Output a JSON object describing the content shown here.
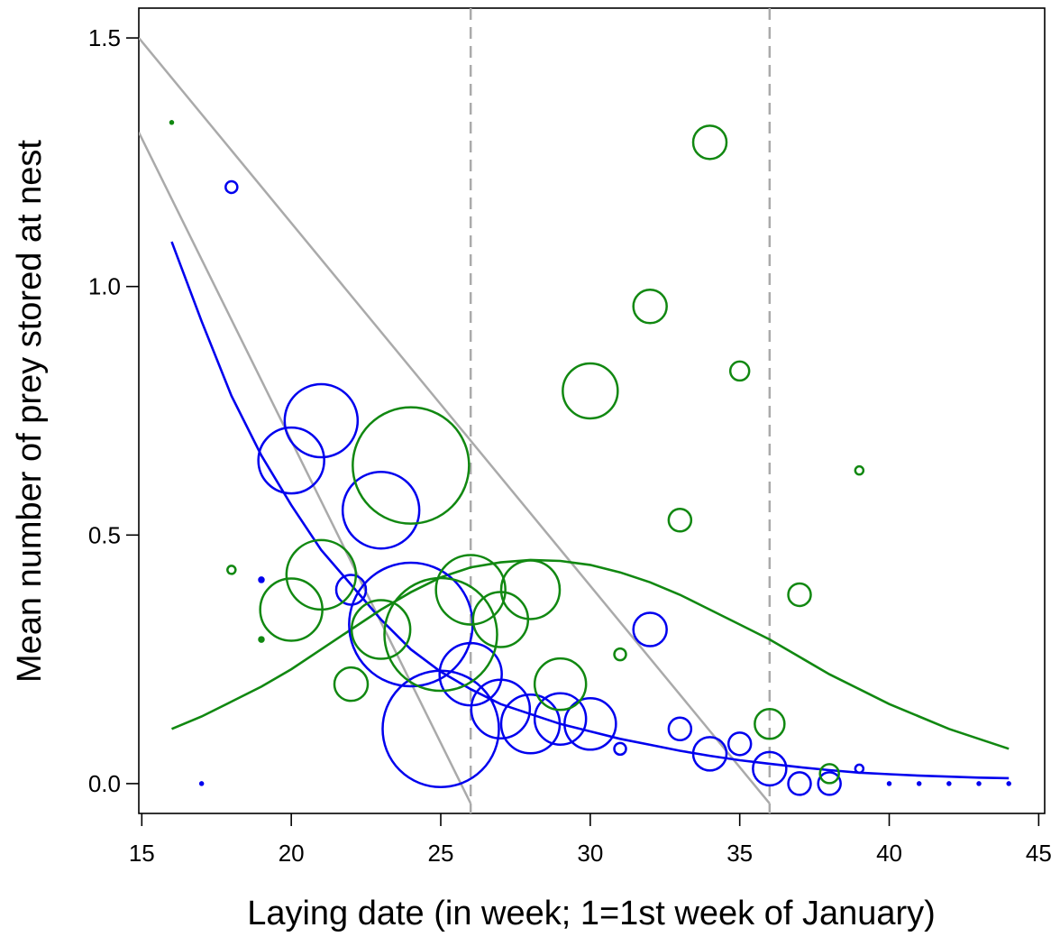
{
  "chart_data": {
    "type": "scatter",
    "title": "",
    "xlabel": "Laying date (in week; 1=1st week of January)",
    "ylabel": "Mean number of prey stored at nest",
    "xlim": [
      14.9,
      45.2
    ],
    "ylim": [
      -0.06,
      1.56
    ],
    "x_ticks": [
      15,
      20,
      25,
      30,
      35,
      40,
      45
    ],
    "y_ticks": [
      0.0,
      0.5,
      1.0,
      1.5
    ],
    "x_tick_labels": [
      "15",
      "20",
      "25",
      "30",
      "35",
      "40",
      "45"
    ],
    "y_tick_labels": [
      "0.0",
      "0.5",
      "1.0",
      "1.5"
    ],
    "grid": false,
    "legend": "none",
    "colors": {
      "blue": "#0000ee",
      "green": "#118811",
      "gray": "#aaaaaa"
    },
    "series": [
      {
        "color": "blue",
        "marker": "circle-size-proportional",
        "points": [
          {
            "x": 17,
            "y": 0.0,
            "size": 1
          },
          {
            "x": 18,
            "y": 1.2,
            "size": 4
          },
          {
            "x": 19,
            "y": 0.41,
            "size": 2
          },
          {
            "x": 20,
            "y": 0.65,
            "size": 19
          },
          {
            "x": 21,
            "y": 0.73,
            "size": 21
          },
          {
            "x": 22,
            "y": 0.39,
            "size": 9
          },
          {
            "x": 23,
            "y": 0.55,
            "size": 22
          },
          {
            "x": 24,
            "y": 0.32,
            "size": 35
          },
          {
            "x": 25,
            "y": 0.11,
            "size": 33
          },
          {
            "x": 26,
            "y": 0.22,
            "size": 18
          },
          {
            "x": 27,
            "y": 0.15,
            "size": 17
          },
          {
            "x": 28,
            "y": 0.12,
            "size": 17
          },
          {
            "x": 29,
            "y": 0.13,
            "size": 15
          },
          {
            "x": 30,
            "y": 0.12,
            "size": 15
          },
          {
            "x": 31,
            "y": 0.07,
            "size": 4
          },
          {
            "x": 32,
            "y": 0.31,
            "size": 10
          },
          {
            "x": 33,
            "y": 0.11,
            "size": 7
          },
          {
            "x": 34,
            "y": 0.06,
            "size": 10
          },
          {
            "x": 35,
            "y": 0.08,
            "size": 7
          },
          {
            "x": 36,
            "y": 0.03,
            "size": 10
          },
          {
            "x": 37,
            "y": 0.0,
            "size": 7
          },
          {
            "x": 38,
            "y": 0.0,
            "size": 7
          },
          {
            "x": 39,
            "y": 0.03,
            "size": 3
          },
          {
            "x": 40,
            "y": 0.0,
            "size": 1
          },
          {
            "x": 41,
            "y": 0.0,
            "size": 1
          },
          {
            "x": 42,
            "y": 0.0,
            "size": 1
          },
          {
            "x": 43,
            "y": 0.0,
            "size": 1
          },
          {
            "x": 44,
            "y": 0.0,
            "size": 1
          }
        ],
        "fit_curve": [
          [
            16,
            1.09
          ],
          [
            17,
            0.93
          ],
          [
            18,
            0.78
          ],
          [
            19,
            0.66
          ],
          [
            20,
            0.56
          ],
          [
            21,
            0.47
          ],
          [
            22,
            0.4
          ],
          [
            23,
            0.33
          ],
          [
            24,
            0.27
          ],
          [
            25,
            0.225
          ],
          [
            26,
            0.19
          ],
          [
            27,
            0.16
          ],
          [
            28,
            0.14
          ],
          [
            29,
            0.12
          ],
          [
            30,
            0.105
          ],
          [
            31,
            0.09
          ],
          [
            32,
            0.078
          ],
          [
            33,
            0.066
          ],
          [
            34,
            0.056
          ],
          [
            35,
            0.047
          ],
          [
            36,
            0.04
          ],
          [
            37,
            0.033
          ],
          [
            38,
            0.027
          ],
          [
            39,
            0.022
          ],
          [
            40,
            0.019
          ],
          [
            41,
            0.016
          ],
          [
            42,
            0.014
          ],
          [
            43,
            0.012
          ],
          [
            44,
            0.011
          ]
        ]
      },
      {
        "color": "green",
        "marker": "circle-size-proportional",
        "points": [
          {
            "x": 16,
            "y": 1.33,
            "size": 1
          },
          {
            "x": 18,
            "y": 0.43,
            "size": 3
          },
          {
            "x": 19,
            "y": 0.29,
            "size": 2
          },
          {
            "x": 20,
            "y": 0.35,
            "size": 18
          },
          {
            "x": 21,
            "y": 0.42,
            "size": 20
          },
          {
            "x": 22,
            "y": 0.2,
            "size": 10
          },
          {
            "x": 23,
            "y": 0.31,
            "size": 17
          },
          {
            "x": 24,
            "y": 0.64,
            "size": 33
          },
          {
            "x": 25,
            "y": 0.3,
            "size": 32
          },
          {
            "x": 26,
            "y": 0.39,
            "size": 20
          },
          {
            "x": 27,
            "y": 0.33,
            "size": 16
          },
          {
            "x": 28,
            "y": 0.39,
            "size": 17
          },
          {
            "x": 29,
            "y": 0.2,
            "size": 15
          },
          {
            "x": 30,
            "y": 0.79,
            "size": 16
          },
          {
            "x": 31,
            "y": 0.26,
            "size": 4
          },
          {
            "x": 32,
            "y": 0.96,
            "size": 10
          },
          {
            "x": 33,
            "y": 0.53,
            "size": 7
          },
          {
            "x": 34,
            "y": 1.29,
            "size": 10
          },
          {
            "x": 35,
            "y": 0.83,
            "size": 6
          },
          {
            "x": 36,
            "y": 0.12,
            "size": 9
          },
          {
            "x": 37,
            "y": 0.38,
            "size": 7
          },
          {
            "x": 38,
            "y": 0.02,
            "size": 6
          },
          {
            "x": 39,
            "y": 0.63,
            "size": 3
          }
        ],
        "fit_curve": [
          [
            16,
            0.11
          ],
          [
            17,
            0.135
          ],
          [
            18,
            0.165
          ],
          [
            19,
            0.195
          ],
          [
            20,
            0.23
          ],
          [
            21,
            0.27
          ],
          [
            22,
            0.31
          ],
          [
            23,
            0.35
          ],
          [
            24,
            0.385
          ],
          [
            25,
            0.415
          ],
          [
            26,
            0.435
          ],
          [
            27,
            0.445
          ],
          [
            28,
            0.45
          ],
          [
            29,
            0.448
          ],
          [
            30,
            0.44
          ],
          [
            31,
            0.425
          ],
          [
            32,
            0.405
          ],
          [
            33,
            0.38
          ],
          [
            34,
            0.35
          ],
          [
            35,
            0.32
          ],
          [
            36,
            0.29
          ],
          [
            37,
            0.255
          ],
          [
            38,
            0.22
          ],
          [
            39,
            0.19
          ],
          [
            40,
            0.16
          ],
          [
            41,
            0.135
          ],
          [
            42,
            0.11
          ],
          [
            43,
            0.09
          ],
          [
            44,
            0.07
          ]
        ]
      }
    ],
    "reference_lines": [
      {
        "color": "gray",
        "style": "solid",
        "from": [
          14.9,
          1.5
        ],
        "to": [
          36,
          -0.04
        ]
      },
      {
        "color": "gray",
        "style": "solid",
        "from": [
          14.9,
          1.31
        ],
        "to": [
          26,
          -0.04
        ]
      }
    ],
    "vertical_lines": [
      {
        "x": 26,
        "color": "gray",
        "style": "dashed"
      },
      {
        "x": 36,
        "color": "gray",
        "style": "dashed"
      }
    ]
  }
}
